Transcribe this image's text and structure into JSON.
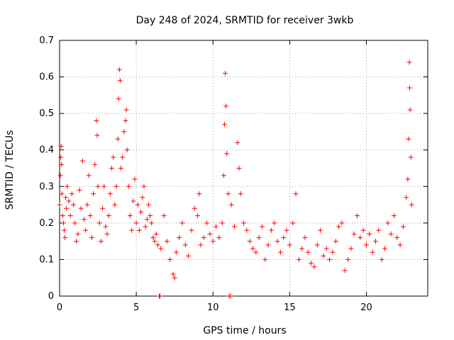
{
  "chart_data": {
    "type": "scatter",
    "title": "Day 248 of 2024, SRMTID for receiver 3wkb",
    "xlabel": "GPS time / hours",
    "ylabel": "SRMTID / TECUs",
    "xlim": [
      0,
      24
    ],
    "ylim": [
      0,
      0.7
    ],
    "xticks": [
      0,
      5,
      10,
      15,
      20
    ],
    "yticks": [
      0,
      0.1,
      0.2,
      0.3,
      0.4,
      0.5,
      0.6,
      0.7
    ],
    "grid": true,
    "marker": "plus",
    "color": "#ff0000",
    "series": [
      {
        "name": "SRMTID",
        "points": [
          [
            0.0,
            0.25
          ],
          [
            0.05,
            0.33
          ],
          [
            0.08,
            0.38
          ],
          [
            0.1,
            0.41
          ],
          [
            0.12,
            0.36
          ],
          [
            0.15,
            0.28
          ],
          [
            0.2,
            0.22
          ],
          [
            0.25,
            0.2
          ],
          [
            0.3,
            0.18
          ],
          [
            0.35,
            0.16
          ],
          [
            0.4,
            0.27
          ],
          [
            0.45,
            0.24
          ],
          [
            0.5,
            0.3
          ],
          [
            0.6,
            0.26
          ],
          [
            0.7,
            0.22
          ],
          [
            0.8,
            0.28
          ],
          [
            0.9,
            0.25
          ],
          [
            1.0,
            0.2
          ],
          [
            1.1,
            0.15
          ],
          [
            1.2,
            0.17
          ],
          [
            1.3,
            0.29
          ],
          [
            1.4,
            0.24
          ],
          [
            1.5,
            0.37
          ],
          [
            1.6,
            0.21
          ],
          [
            1.7,
            0.18
          ],
          [
            1.8,
            0.25
          ],
          [
            1.9,
            0.33
          ],
          [
            2.0,
            0.22
          ],
          [
            2.1,
            0.16
          ],
          [
            2.2,
            0.28
          ],
          [
            2.3,
            0.36
          ],
          [
            2.4,
            0.48
          ],
          [
            2.45,
            0.44
          ],
          [
            2.5,
            0.3
          ],
          [
            2.6,
            0.2
          ],
          [
            2.7,
            0.15
          ],
          [
            2.8,
            0.24
          ],
          [
            2.9,
            0.3
          ],
          [
            3.0,
            0.19
          ],
          [
            3.1,
            0.17
          ],
          [
            3.2,
            0.22
          ],
          [
            3.3,
            0.28
          ],
          [
            3.4,
            0.35
          ],
          [
            3.5,
            0.38
          ],
          [
            3.6,
            0.25
          ],
          [
            3.7,
            0.3
          ],
          [
            3.8,
            0.43
          ],
          [
            3.85,
            0.54
          ],
          [
            3.9,
            0.62
          ],
          [
            3.95,
            0.59
          ],
          [
            4.0,
            0.35
          ],
          [
            4.1,
            0.38
          ],
          [
            4.2,
            0.45
          ],
          [
            4.3,
            0.48
          ],
          [
            4.35,
            0.51
          ],
          [
            4.4,
            0.4
          ],
          [
            4.5,
            0.3
          ],
          [
            4.6,
            0.22
          ],
          [
            4.7,
            0.18
          ],
          [
            4.8,
            0.26
          ],
          [
            4.9,
            0.32
          ],
          [
            5.0,
            0.2
          ],
          [
            5.1,
            0.25
          ],
          [
            5.2,
            0.18
          ],
          [
            5.3,
            0.23
          ],
          [
            5.4,
            0.27
          ],
          [
            5.5,
            0.3
          ],
          [
            5.6,
            0.19
          ],
          [
            5.7,
            0.21
          ],
          [
            5.8,
            0.25
          ],
          [
            5.9,
            0.22
          ],
          [
            6.0,
            0.2
          ],
          [
            6.1,
            0.16
          ],
          [
            6.2,
            0.15
          ],
          [
            6.3,
            0.17
          ],
          [
            6.4,
            0.14
          ],
          [
            6.5,
            0.0
          ],
          [
            6.55,
            0.0
          ],
          [
            6.6,
            0.13
          ],
          [
            6.8,
            0.22
          ],
          [
            7.0,
            0.15
          ],
          [
            7.2,
            0.1
          ],
          [
            7.4,
            0.06
          ],
          [
            7.5,
            0.05
          ],
          [
            7.6,
            0.12
          ],
          [
            7.8,
            0.16
          ],
          [
            8.0,
            0.2
          ],
          [
            8.2,
            0.14
          ],
          [
            8.4,
            0.11
          ],
          [
            8.6,
            0.18
          ],
          [
            8.8,
            0.24
          ],
          [
            9.0,
            0.22
          ],
          [
            9.1,
            0.28
          ],
          [
            9.2,
            0.14
          ],
          [
            9.4,
            0.16
          ],
          [
            9.6,
            0.2
          ],
          [
            9.8,
            0.17
          ],
          [
            10.0,
            0.15
          ],
          [
            10.2,
            0.19
          ],
          [
            10.4,
            0.16
          ],
          [
            10.6,
            0.2
          ],
          [
            10.7,
            0.33
          ],
          [
            10.75,
            0.47
          ],
          [
            10.8,
            0.61
          ],
          [
            10.85,
            0.52
          ],
          [
            10.9,
            0.39
          ],
          [
            11.0,
            0.28
          ],
          [
            11.05,
            0.0
          ],
          [
            11.15,
            0.0
          ],
          [
            11.2,
            0.25
          ],
          [
            11.4,
            0.19
          ],
          [
            11.6,
            0.42
          ],
          [
            11.7,
            0.35
          ],
          [
            11.8,
            0.28
          ],
          [
            12.0,
            0.2
          ],
          [
            12.2,
            0.18
          ],
          [
            12.4,
            0.15
          ],
          [
            12.6,
            0.13
          ],
          [
            12.8,
            0.12
          ],
          [
            13.0,
            0.16
          ],
          [
            13.2,
            0.19
          ],
          [
            13.4,
            0.1
          ],
          [
            13.6,
            0.14
          ],
          [
            13.8,
            0.18
          ],
          [
            14.0,
            0.2
          ],
          [
            14.2,
            0.15
          ],
          [
            14.4,
            0.12
          ],
          [
            14.6,
            0.16
          ],
          [
            14.8,
            0.18
          ],
          [
            15.0,
            0.14
          ],
          [
            15.2,
            0.2
          ],
          [
            15.4,
            0.28
          ],
          [
            15.6,
            0.1
          ],
          [
            15.8,
            0.13
          ],
          [
            16.0,
            0.16
          ],
          [
            16.2,
            0.12
          ],
          [
            16.4,
            0.09
          ],
          [
            16.6,
            0.08
          ],
          [
            16.8,
            0.14
          ],
          [
            17.0,
            0.18
          ],
          [
            17.2,
            0.11
          ],
          [
            17.4,
            0.13
          ],
          [
            17.6,
            0.1
          ],
          [
            17.8,
            0.12
          ],
          [
            18.0,
            0.15
          ],
          [
            18.2,
            0.19
          ],
          [
            18.4,
            0.2
          ],
          [
            18.6,
            0.07
          ],
          [
            18.8,
            0.1
          ],
          [
            19.0,
            0.13
          ],
          [
            19.2,
            0.17
          ],
          [
            19.4,
            0.22
          ],
          [
            19.6,
            0.16
          ],
          [
            19.8,
            0.18
          ],
          [
            20.0,
            0.14
          ],
          [
            20.2,
            0.17
          ],
          [
            20.4,
            0.12
          ],
          [
            20.6,
            0.15
          ],
          [
            20.8,
            0.18
          ],
          [
            21.0,
            0.1
          ],
          [
            21.2,
            0.13
          ],
          [
            21.4,
            0.2
          ],
          [
            21.6,
            0.17
          ],
          [
            21.8,
            0.22
          ],
          [
            22.0,
            0.16
          ],
          [
            22.2,
            0.14
          ],
          [
            22.4,
            0.19
          ],
          [
            22.6,
            0.27
          ],
          [
            22.7,
            0.32
          ],
          [
            22.75,
            0.43
          ],
          [
            22.8,
            0.64
          ],
          [
            22.82,
            0.57
          ],
          [
            22.85,
            0.51
          ],
          [
            22.9,
            0.38
          ],
          [
            22.95,
            0.25
          ]
        ]
      }
    ]
  }
}
